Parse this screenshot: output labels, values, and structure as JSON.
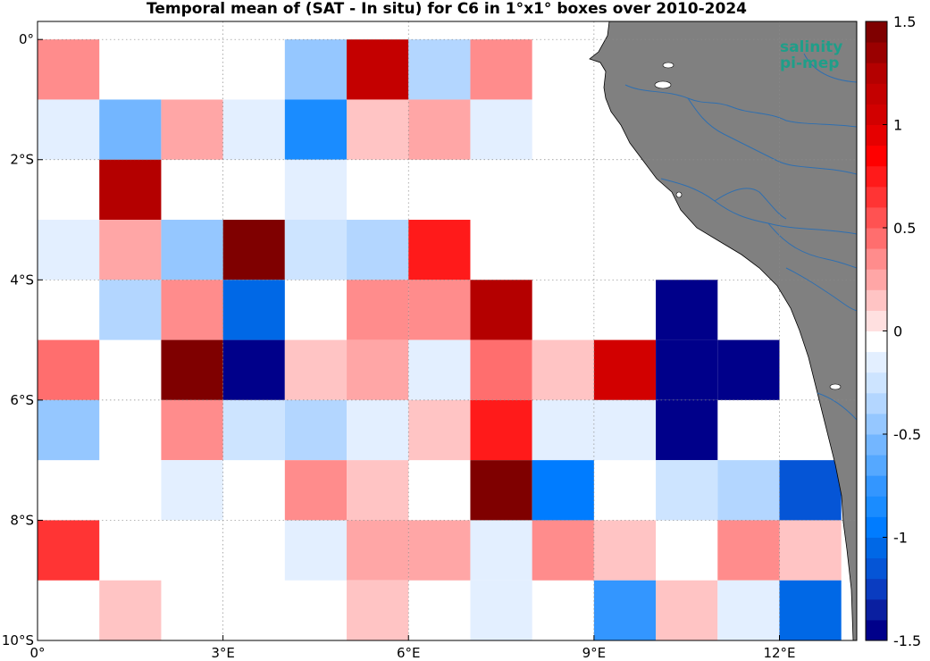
{
  "title": "Temporal mean of (SAT - In situ) for C6 in 1°x1° boxes over 2010-2024",
  "logo": {
    "line1": "salinity",
    "line2": "pi-mep",
    "color": "#1f9e89"
  },
  "map": {
    "lon_range": [
      0,
      13.25
    ],
    "lat_range": [
      -10,
      0.3
    ],
    "land_color": "#808080",
    "river_color": "#2f6fb0",
    "grid": "dotted",
    "x_ticks": [
      {
        "value": 0,
        "label": "0°"
      },
      {
        "value": 3,
        "label": "3°E"
      },
      {
        "value": 6,
        "label": "6°E"
      },
      {
        "value": 9,
        "label": "9°E"
      },
      {
        "value": 12,
        "label": "12°E"
      }
    ],
    "y_ticks": [
      {
        "value": 0,
        "label": "0°"
      },
      {
        "value": -2,
        "label": "2°S"
      },
      {
        "value": -4,
        "label": "4°S"
      },
      {
        "value": -6,
        "label": "6°S"
      },
      {
        "value": -8,
        "label": "8°S"
      },
      {
        "value": -10,
        "label": "10°S"
      }
    ]
  },
  "colorbar": {
    "min": -1.5,
    "max": 1.5,
    "colors": [
      "#00008a",
      "#0a1fa0",
      "#0a3cc0",
      "#0555d6",
      "#0068e6",
      "#007cff",
      "#1a8cff",
      "#3396ff",
      "#55a8ff",
      "#73b6ff",
      "#95c7ff",
      "#b3d6ff",
      "#cde4ff",
      "#e3efff",
      "#ffffff",
      "#ffe0e0",
      "#ffc4c4",
      "#ffa6a6",
      "#ff8c8c",
      "#ff6e6e",
      "#ff5252",
      "#ff3434",
      "#ff1a1a",
      "#ff0000",
      "#e60000",
      "#d20000",
      "#c40000",
      "#b40000",
      "#9a0000",
      "#7f0000"
    ],
    "ticks": [
      {
        "value": 1.5,
        "label": "1.5"
      },
      {
        "value": 1,
        "label": "1"
      },
      {
        "value": 0.5,
        "label": "0.5"
      },
      {
        "value": 0,
        "label": "0"
      },
      {
        "value": -0.5,
        "label": "-0.5"
      },
      {
        "value": -1,
        "label": "-1"
      },
      {
        "value": -1.5,
        "label": "-1.5"
      }
    ]
  },
  "chart_data": {
    "type": "heatmap",
    "title": "Temporal mean of (SAT - In situ) for C6 in 1°x1° boxes over 2010-2024",
    "xlabel": "",
    "ylabel": "",
    "cell_size_deg": 1,
    "value_range": [
      -1.5,
      1.5
    ],
    "cells": [
      {
        "lon": 0,
        "lat": 0,
        "value": 0.3
      },
      {
        "lon": 4,
        "lat": 0,
        "value": -0.45
      },
      {
        "lon": 5,
        "lat": 0,
        "value": 1.15
      },
      {
        "lon": 6,
        "lat": 0,
        "value": -0.3
      },
      {
        "lon": 7,
        "lat": 0,
        "value": 0.3
      },
      {
        "lon": 0,
        "lat": -1,
        "value": -0.1
      },
      {
        "lon": 1,
        "lat": -1,
        "value": -0.55
      },
      {
        "lon": 2,
        "lat": -1,
        "value": 0.2
      },
      {
        "lon": 3,
        "lat": -1,
        "value": -0.1
      },
      {
        "lon": 4,
        "lat": -1,
        "value": -0.8
      },
      {
        "lon": 5,
        "lat": -1,
        "value": 0.1
      },
      {
        "lon": 6,
        "lat": -1,
        "value": 0.2
      },
      {
        "lon": 7,
        "lat": -1,
        "value": -0.2
      },
      {
        "lon": 1,
        "lat": -2,
        "value": 1.2
      },
      {
        "lon": 4,
        "lat": -2,
        "value": -0.1
      },
      {
        "lon": 0,
        "lat": -3,
        "value": -0.1
      },
      {
        "lon": 1,
        "lat": -3,
        "value": 0.2
      },
      {
        "lon": 2,
        "lat": -3,
        "value": -0.45
      },
      {
        "lon": 3,
        "lat": -3,
        "value": 1.4
      },
      {
        "lon": 4,
        "lat": -3,
        "value": -0.25
      },
      {
        "lon": 5,
        "lat": -3,
        "value": -0.35
      },
      {
        "lon": 6,
        "lat": -3,
        "value": 0.75
      },
      {
        "lon": 1,
        "lat": -4,
        "value": -0.3
      },
      {
        "lon": 2,
        "lat": -4,
        "value": 0.35
      },
      {
        "lon": 3,
        "lat": -4,
        "value": -1.05
      },
      {
        "lon": 5,
        "lat": -4,
        "value": 0.35
      },
      {
        "lon": 6,
        "lat": -4,
        "value": 0.35
      },
      {
        "lon": 7,
        "lat": -4,
        "value": 1.3
      },
      {
        "lon": 10,
        "lat": -4,
        "value": -1.5
      },
      {
        "lon": 0,
        "lat": -5,
        "value": 0.45
      },
      {
        "lon": 2,
        "lat": -5,
        "value": 1.45
      },
      {
        "lon": 3,
        "lat": -5,
        "value": -1.5
      },
      {
        "lon": 4,
        "lat": -5,
        "value": 0.1
      },
      {
        "lon": 5,
        "lat": -5,
        "value": 0.2
      },
      {
        "lon": 6,
        "lat": -5,
        "value": -0.1
      },
      {
        "lon": 7,
        "lat": -5,
        "value": 0.45
      },
      {
        "lon": 8,
        "lat": -5,
        "value": 0.1
      },
      {
        "lon": 9,
        "lat": -5,
        "value": 1.0
      },
      {
        "lon": 10,
        "lat": -5,
        "value": -1.5
      },
      {
        "lon": 11,
        "lat": -5,
        "value": -1.5
      },
      {
        "lon": 0,
        "lat": -6,
        "value": -0.5
      },
      {
        "lon": 2,
        "lat": -6,
        "value": 0.35
      },
      {
        "lon": 3,
        "lat": -6,
        "value": -0.25
      },
      {
        "lon": 4,
        "lat": -6,
        "value": -0.35
      },
      {
        "lon": 5,
        "lat": -6,
        "value": -0.1
      },
      {
        "lon": 6,
        "lat": -6,
        "value": 0.1
      },
      {
        "lon": 7,
        "lat": -6,
        "value": 0.75
      },
      {
        "lon": 8,
        "lat": -6,
        "value": -0.1
      },
      {
        "lon": 9,
        "lat": -6,
        "value": -0.1
      },
      {
        "lon": 10,
        "lat": -6,
        "value": -1.5
      },
      {
        "lon": 2,
        "lat": -7,
        "value": -0.2
      },
      {
        "lon": 4,
        "lat": -7,
        "value": 0.35
      },
      {
        "lon": 5,
        "lat": -7,
        "value": 0.1
      },
      {
        "lon": 7,
        "lat": -7,
        "value": 1.45
      },
      {
        "lon": 8,
        "lat": -7,
        "value": -1.0
      },
      {
        "lon": 10,
        "lat": -7,
        "value": -0.25
      },
      {
        "lon": 11,
        "lat": -7,
        "value": -0.35
      },
      {
        "lon": 12,
        "lat": -7,
        "value": -1.15
      },
      {
        "lon": 0,
        "lat": -8,
        "value": 0.6
      },
      {
        "lon": 4,
        "lat": -8,
        "value": -0.2
      },
      {
        "lon": 5,
        "lat": -8,
        "value": 0.2
      },
      {
        "lon": 6,
        "lat": -8,
        "value": 0.2
      },
      {
        "lon": 7,
        "lat": -8,
        "value": -0.2
      },
      {
        "lon": 8,
        "lat": -8,
        "value": 0.35
      },
      {
        "lon": 9,
        "lat": -8,
        "value": 0.1
      },
      {
        "lon": 11,
        "lat": -8,
        "value": 0.35
      },
      {
        "lon": 12,
        "lat": -8,
        "value": 0.1
      },
      {
        "lon": 1,
        "lat": -9,
        "value": 0.1
      },
      {
        "lon": 5,
        "lat": -9,
        "value": 0.1
      },
      {
        "lon": 7,
        "lat": -9,
        "value": -0.2
      },
      {
        "lon": 9,
        "lat": -9,
        "value": -0.75
      },
      {
        "lon": 10,
        "lat": -9,
        "value": 0.1
      },
      {
        "lon": 11,
        "lat": -9,
        "value": -0.1
      },
      {
        "lon": 12,
        "lat": -9,
        "value": -1.05
      }
    ]
  }
}
